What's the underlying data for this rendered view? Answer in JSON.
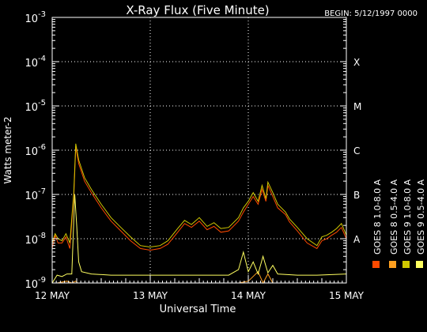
{
  "chart_data": {
    "type": "line",
    "title": "X-Ray Flux (Five Minute)",
    "begin_label": "BEGIN: 5/12/1997 0000",
    "xlabel": "Universal Time",
    "ylabel": "Watts meter-2",
    "ylim": [
      1e-09,
      0.001
    ],
    "y_scale": "log",
    "y_ticks": [
      {
        "value": 1e-09,
        "mant": "10",
        "exp": "-9"
      },
      {
        "value": 1e-08,
        "mant": "10",
        "exp": "-8"
      },
      {
        "value": 1e-07,
        "mant": "10",
        "exp": "-7"
      },
      {
        "value": 1e-06,
        "mant": "10",
        "exp": "-6"
      },
      {
        "value": 1e-05,
        "mant": "10",
        "exp": "-5"
      },
      {
        "value": 0.0001,
        "mant": "10",
        "exp": "-4"
      },
      {
        "value": 0.001,
        "mant": "10",
        "exp": "-3"
      }
    ],
    "x_ticks": [
      {
        "day": 0,
        "label": "12 MAY"
      },
      {
        "day": 1,
        "label": "13 MAY"
      },
      {
        "day": 2,
        "label": "14 MAY"
      },
      {
        "day": 3,
        "label": "15 MAY"
      }
    ],
    "xlim": [
      0,
      3
    ],
    "flare_classes": [
      {
        "label": "A",
        "value": 1e-08
      },
      {
        "label": "B",
        "value": 1e-07
      },
      {
        "label": "C",
        "value": 1e-06
      },
      {
        "label": "M",
        "value": 1e-05
      },
      {
        "label": "X",
        "value": 0.0001
      }
    ],
    "grid": "dotted",
    "legend": "right",
    "series": [
      {
        "name": "GOES 8 1.0-8.0 A",
        "color": "#ff4a00",
        "points": [
          [
            0,
            6e-09
          ],
          [
            0.03,
            1.2e-08
          ],
          [
            0.06,
            8e-09
          ],
          [
            0.1,
            8e-09
          ],
          [
            0.14,
            1.1e-08
          ],
          [
            0.18,
            6e-09
          ],
          [
            0.22,
            9e-08
          ],
          [
            0.24,
            1.2e-06
          ],
          [
            0.27,
            5e-07
          ],
          [
            0.33,
            2e-07
          ],
          [
            0.4,
            1.1e-07
          ],
          [
            0.5,
            5e-08
          ],
          [
            0.6,
            2.5e-08
          ],
          [
            0.7,
            1.5e-08
          ],
          [
            0.8,
            9e-09
          ],
          [
            0.9,
            6e-09
          ],
          [
            1.0,
            5.5e-09
          ],
          [
            1.1,
            6e-09
          ],
          [
            1.18,
            7.5e-09
          ],
          [
            1.28,
            1.4e-08
          ],
          [
            1.35,
            2.2e-08
          ],
          [
            1.42,
            1.8e-08
          ],
          [
            1.5,
            2.5e-08
          ],
          [
            1.58,
            1.6e-08
          ],
          [
            1.65,
            1.9e-08
          ],
          [
            1.72,
            1.4e-08
          ],
          [
            1.8,
            1.5e-08
          ],
          [
            1.9,
            2.5e-08
          ],
          [
            1.95,
            4e-08
          ],
          [
            2.0,
            6e-08
          ],
          [
            2.05,
            9e-08
          ],
          [
            2.1,
            6e-08
          ],
          [
            2.14,
            1.3e-07
          ],
          [
            2.18,
            7e-08
          ],
          [
            2.2,
            1.6e-07
          ],
          [
            2.25,
            9e-08
          ],
          [
            2.3,
            5e-08
          ],
          [
            2.38,
            3.5e-08
          ],
          [
            2.42,
            2.4e-08
          ],
          [
            2.5,
            1.5e-08
          ],
          [
            2.6,
            8e-09
          ],
          [
            2.7,
            6e-09
          ],
          [
            2.75,
            9e-09
          ],
          [
            2.8,
            1e-08
          ],
          [
            2.85,
            1.2e-08
          ],
          [
            2.9,
            1.4e-08
          ],
          [
            2.95,
            1.8e-08
          ],
          [
            3.0,
            1e-08
          ]
        ]
      },
      {
        "name": "GOES 8 0.5-4.0 A",
        "color": "#ffa020",
        "points": [
          [
            0,
            1e-09
          ],
          [
            0.05,
            1e-09
          ],
          [
            0.15,
            1.1e-09
          ],
          [
            0.2,
            1e-09
          ],
          [
            0.24,
            1.1e-09
          ],
          [
            0.26,
            1e-09
          ],
          [
            1.0,
            1e-09
          ],
          [
            1.9,
            1e-09
          ],
          [
            2.0,
            1.1e-09
          ],
          [
            2.1,
            1.8e-09
          ],
          [
            2.15,
            1e-09
          ],
          [
            2.2,
            1.6e-09
          ],
          [
            2.25,
            1e-09
          ],
          [
            3.0,
            1e-09
          ]
        ]
      },
      {
        "name": "GOES 9 1.0-8.0 A",
        "color": "#d0c800",
        "points": [
          [
            0,
            8e-09
          ],
          [
            0.03,
            1.3e-08
          ],
          [
            0.06,
            1e-08
          ],
          [
            0.1,
            9e-09
          ],
          [
            0.14,
            1.3e-08
          ],
          [
            0.18,
            8e-09
          ],
          [
            0.22,
            1.1e-07
          ],
          [
            0.24,
            1.4e-06
          ],
          [
            0.27,
            6e-07
          ],
          [
            0.33,
            2.4e-07
          ],
          [
            0.4,
            1.3e-07
          ],
          [
            0.5,
            6e-08
          ],
          [
            0.6,
            3e-08
          ],
          [
            0.7,
            1.8e-08
          ],
          [
            0.8,
            1.1e-08
          ],
          [
            0.9,
            7e-09
          ],
          [
            1.0,
            6.5e-09
          ],
          [
            1.1,
            7e-09
          ],
          [
            1.18,
            9e-09
          ],
          [
            1.28,
            1.7e-08
          ],
          [
            1.35,
            2.6e-08
          ],
          [
            1.42,
            2.1e-08
          ],
          [
            1.5,
            3e-08
          ],
          [
            1.58,
            1.9e-08
          ],
          [
            1.65,
            2.3e-08
          ],
          [
            1.72,
            1.7e-08
          ],
          [
            1.8,
            1.8e-08
          ],
          [
            1.9,
            3e-08
          ],
          [
            1.95,
            5e-08
          ],
          [
            2.0,
            7e-08
          ],
          [
            2.05,
            1.1e-07
          ],
          [
            2.1,
            7e-08
          ],
          [
            2.14,
            1.6e-07
          ],
          [
            2.18,
            8e-08
          ],
          [
            2.2,
            1.9e-07
          ],
          [
            2.25,
            1.1e-07
          ],
          [
            2.3,
            6e-08
          ],
          [
            2.38,
            4e-08
          ],
          [
            2.42,
            2.8e-08
          ],
          [
            2.5,
            1.8e-08
          ],
          [
            2.6,
            1e-08
          ],
          [
            2.7,
            7e-09
          ],
          [
            2.75,
            1.1e-08
          ],
          [
            2.8,
            1.2e-08
          ],
          [
            2.85,
            1.4e-08
          ],
          [
            2.9,
            1.7e-08
          ],
          [
            2.95,
            2.2e-08
          ],
          [
            3.0,
            1.2e-08
          ]
        ]
      },
      {
        "name": "GOES 9 0.5-4.0 A",
        "color": "#ffff60",
        "points": [
          [
            0,
            1e-09
          ],
          [
            0.05,
            1.5e-09
          ],
          [
            0.1,
            1.4e-09
          ],
          [
            0.15,
            1.6e-09
          ],
          [
            0.2,
            1.6e-09
          ],
          [
            0.23,
            1e-07
          ],
          [
            0.25,
            2e-08
          ],
          [
            0.27,
            3e-09
          ],
          [
            0.3,
            1.8e-09
          ],
          [
            0.4,
            1.6e-09
          ],
          [
            0.6,
            1.5e-09
          ],
          [
            1.0,
            1.5e-09
          ],
          [
            1.4,
            1.5e-09
          ],
          [
            1.8,
            1.5e-09
          ],
          [
            1.9,
            2e-09
          ],
          [
            1.95,
            5e-09
          ],
          [
            2.0,
            1.8e-09
          ],
          [
            2.05,
            3e-09
          ],
          [
            2.1,
            1.6e-09
          ],
          [
            2.15,
            4e-09
          ],
          [
            2.2,
            1.7e-09
          ],
          [
            2.25,
            2.5e-09
          ],
          [
            2.3,
            1.6e-09
          ],
          [
            2.5,
            1.5e-09
          ],
          [
            2.7,
            1.5e-09
          ],
          [
            3.0,
            1.6e-09
          ]
        ]
      }
    ]
  }
}
